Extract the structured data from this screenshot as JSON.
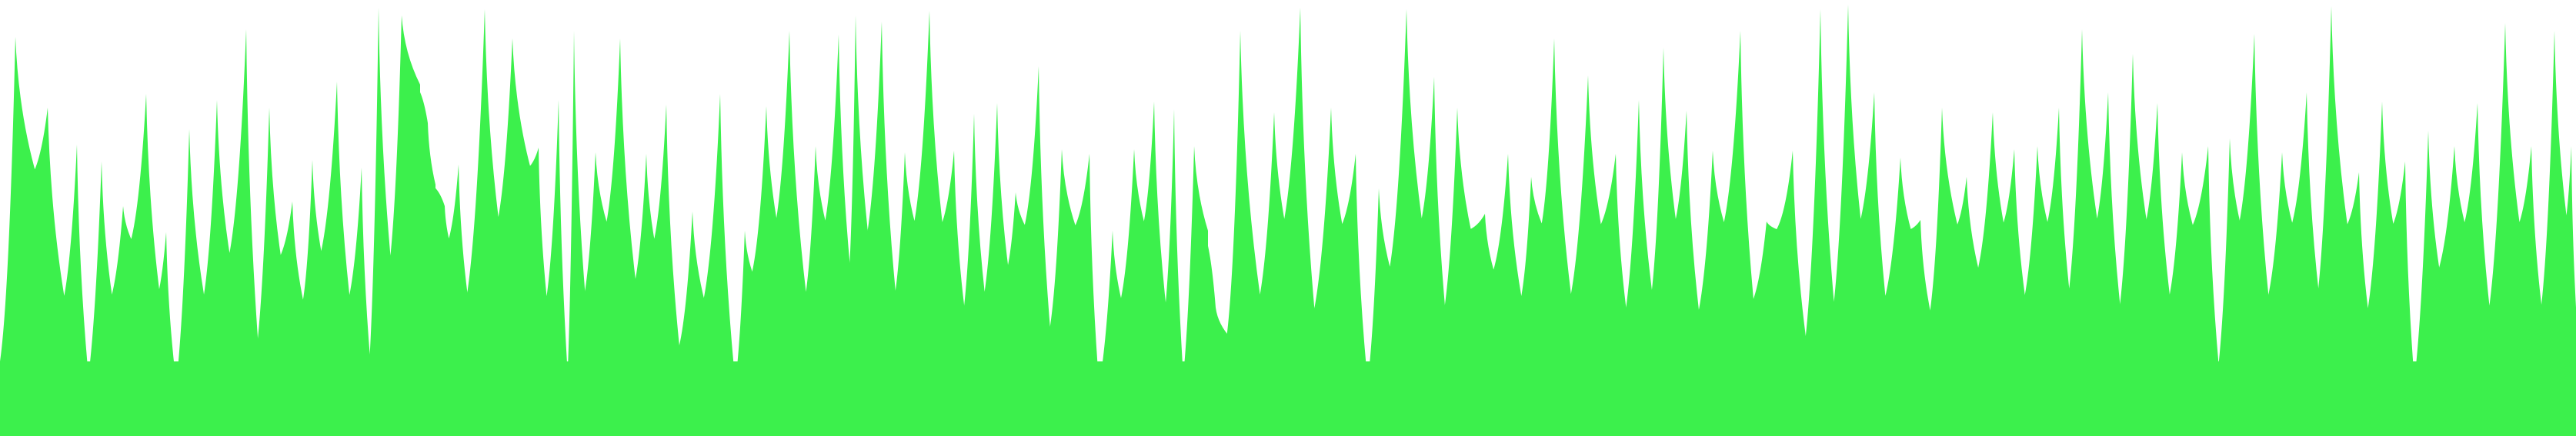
{
  "scene": {
    "subject": "grass",
    "background_color": "#ffffff",
    "grass_color": "#3cf04c"
  }
}
